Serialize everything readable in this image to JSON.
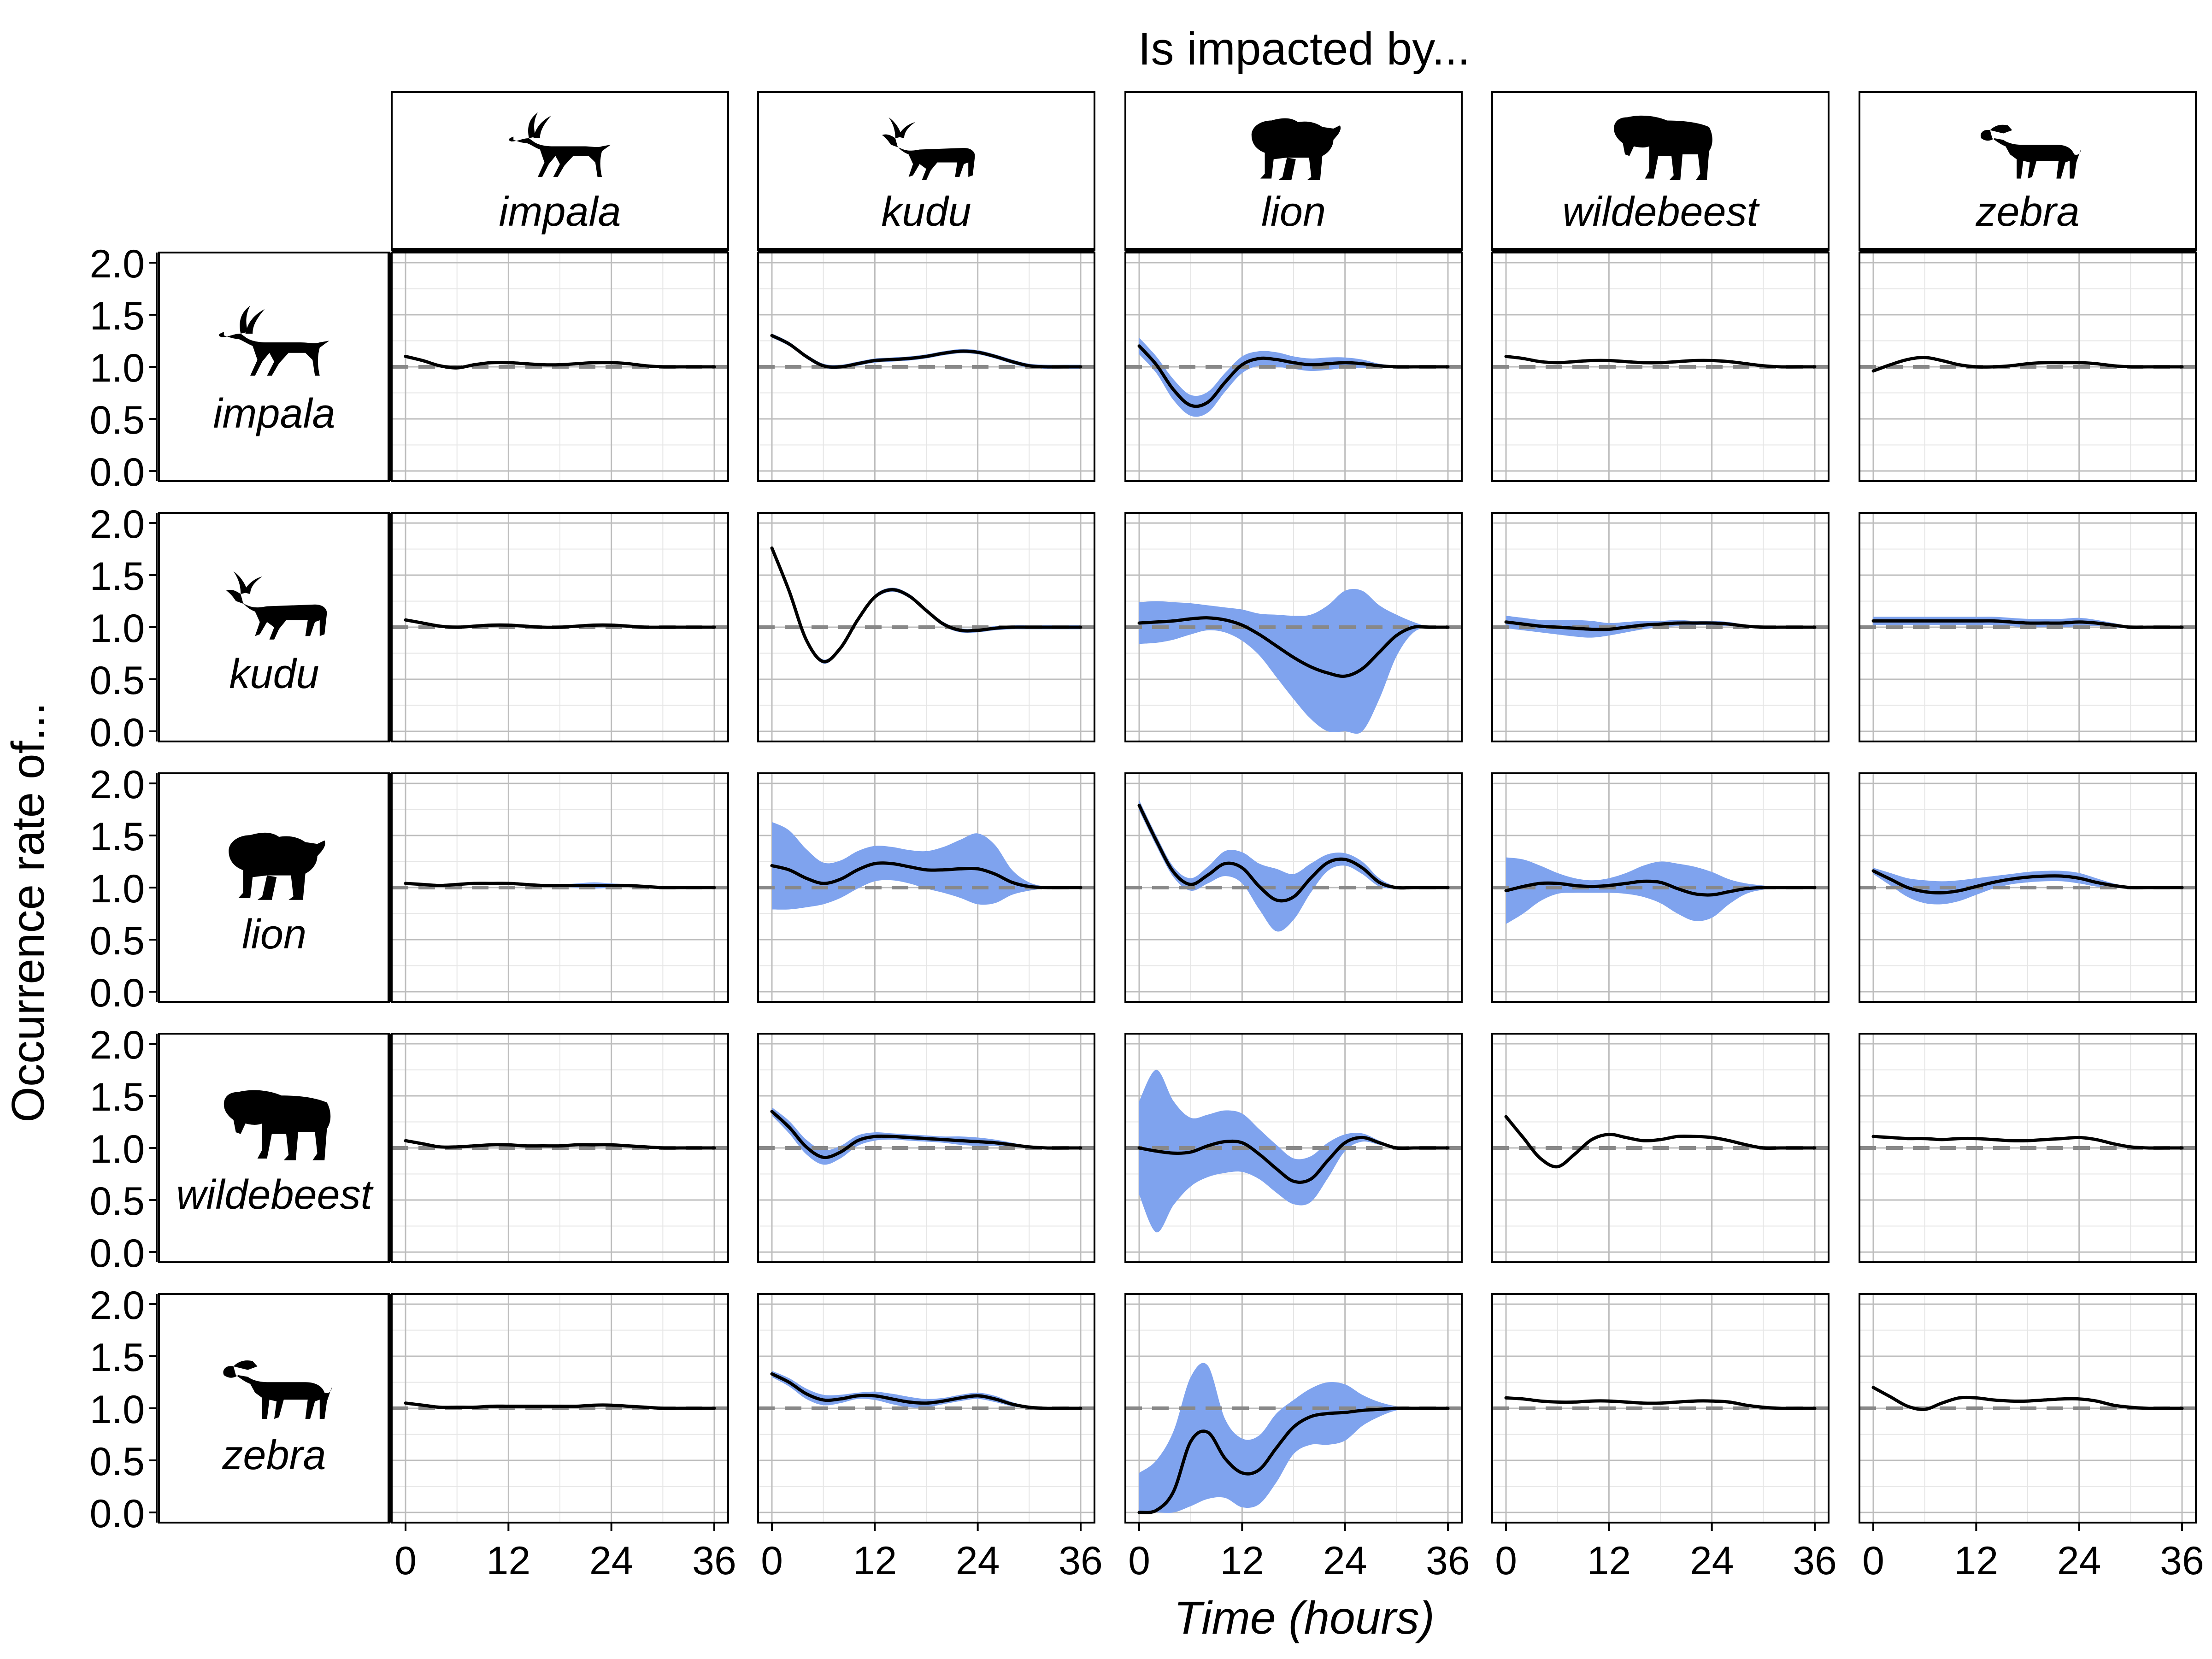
{
  "figure": {
    "top_title": "Is impacted by...",
    "y_title": "Occurrence rate of...",
    "x_title": "Time (hours)",
    "species": [
      "impala",
      "kudu",
      "lion",
      "wildebeest",
      "zebra"
    ]
  },
  "chart_data": {
    "type": "line",
    "layout": "facet grid: rows = species whose occurrence rate is shown, columns = species it is impacted by",
    "xlim": [
      0,
      36
    ],
    "ylim": [
      0,
      2
    ],
    "x_ticks": [
      0,
      12,
      24,
      36
    ],
    "y_ticks": [
      "0.0",
      "0.5",
      "1.0",
      "1.5",
      "2.0"
    ],
    "grid": true,
    "reference_line": 1.0,
    "band_color": "#7fa3ee",
    "line_color": "#000000",
    "x": [
      0,
      2,
      4,
      6,
      8,
      10,
      12,
      14,
      16,
      18,
      20,
      22,
      24,
      26,
      28,
      30,
      32,
      34,
      36
    ],
    "panels": [
      {
        "row": "impala",
        "col": "impala",
        "y": [
          1.1,
          1.06,
          1.01,
          0.99,
          1.02,
          1.04,
          1.04,
          1.03,
          1.02,
          1.02,
          1.03,
          1.04,
          1.04,
          1.03,
          1.01,
          1.0,
          1.0,
          1.0,
          1.0
        ]
      },
      {
        "row": "impala",
        "col": "kudu",
        "y": [
          1.3,
          1.22,
          1.1,
          1.01,
          1.0,
          1.03,
          1.06,
          1.07,
          1.08,
          1.1,
          1.13,
          1.15,
          1.14,
          1.1,
          1.05,
          1.01,
          1.0,
          1.0,
          1.0
        ],
        "band": 0.02
      },
      {
        "row": "impala",
        "col": "lion",
        "y": [
          1.2,
          1.02,
          0.78,
          0.63,
          0.66,
          0.85,
          1.02,
          1.08,
          1.07,
          1.04,
          1.02,
          1.03,
          1.04,
          1.03,
          1.01,
          1.0,
          1.0,
          1.0,
          1.0
        ],
        "band": [
          0.08,
          0.08,
          0.1,
          0.1,
          0.1,
          0.09,
          0.08,
          0.07,
          0.07,
          0.06,
          0.06,
          0.06,
          0.05,
          0.04,
          0.02,
          0.01,
          0.0,
          0.0,
          0.0
        ]
      },
      {
        "row": "impala",
        "col": "wildebeest",
        "y": [
          1.1,
          1.08,
          1.05,
          1.04,
          1.05,
          1.06,
          1.06,
          1.05,
          1.04,
          1.04,
          1.05,
          1.06,
          1.06,
          1.05,
          1.03,
          1.01,
          1.0,
          1.0,
          1.0
        ]
      },
      {
        "row": "impala",
        "col": "zebra",
        "y": [
          0.96,
          1.02,
          1.07,
          1.09,
          1.06,
          1.02,
          1.0,
          1.0,
          1.01,
          1.03,
          1.04,
          1.04,
          1.04,
          1.03,
          1.01,
          1.0,
          1.0,
          1.0,
          1.0
        ]
      },
      {
        "row": "kudu",
        "col": "impala",
        "y": [
          1.07,
          1.04,
          1.01,
          1.0,
          1.01,
          1.02,
          1.02,
          1.01,
          1.0,
          1.0,
          1.01,
          1.02,
          1.02,
          1.01,
          1.0,
          1.0,
          1.0,
          1.0,
          1.0
        ]
      },
      {
        "row": "kudu",
        "col": "kudu",
        "y": [
          1.76,
          1.35,
          0.88,
          0.67,
          0.8,
          1.07,
          1.29,
          1.36,
          1.3,
          1.16,
          1.03,
          0.97,
          0.97,
          0.99,
          1.0,
          1.0,
          1.0,
          1.0,
          1.0
        ],
        "band": 0.02
      },
      {
        "row": "kudu",
        "col": "lion",
        "y": [
          1.04,
          1.05,
          1.06,
          1.08,
          1.09,
          1.07,
          1.02,
          0.93,
          0.82,
          0.71,
          0.62,
          0.56,
          0.53,
          0.6,
          0.76,
          0.92,
          1.0,
          1.0,
          1.0
        ],
        "band": [
          0.2,
          0.2,
          0.18,
          0.15,
          0.12,
          0.12,
          0.15,
          0.2,
          0.3,
          0.4,
          0.5,
          0.65,
          0.82,
          0.75,
          0.45,
          0.2,
          0.05,
          0.0,
          0.0
        ]
      },
      {
        "row": "kudu",
        "col": "wildebeest",
        "y": [
          1.05,
          1.03,
          1.01,
          1.0,
          0.99,
          0.98,
          0.98,
          1.0,
          1.02,
          1.03,
          1.04,
          1.04,
          1.04,
          1.03,
          1.01,
          1.0,
          1.0,
          1.0,
          1.0
        ],
        "band": [
          0.06,
          0.06,
          0.06,
          0.07,
          0.08,
          0.08,
          0.06,
          0.05,
          0.04,
          0.03,
          0.03,
          0.02,
          0.02,
          0.02,
          0.01,
          0.0,
          0.0,
          0.0,
          0.0
        ]
      },
      {
        "row": "kudu",
        "col": "zebra",
        "y": [
          1.06,
          1.06,
          1.06,
          1.06,
          1.06,
          1.06,
          1.06,
          1.06,
          1.05,
          1.04,
          1.04,
          1.04,
          1.05,
          1.04,
          1.02,
          1.0,
          1.0,
          1.0,
          1.0
        ],
        "band": [
          0.04,
          0.04,
          0.04,
          0.04,
          0.04,
          0.04,
          0.04,
          0.04,
          0.04,
          0.04,
          0.04,
          0.04,
          0.04,
          0.03,
          0.02,
          0.01,
          0.0,
          0.0,
          0.0
        ]
      },
      {
        "row": "lion",
        "col": "impala",
        "y": [
          1.04,
          1.03,
          1.02,
          1.03,
          1.04,
          1.04,
          1.04,
          1.03,
          1.02,
          1.02,
          1.02,
          1.02,
          1.02,
          1.02,
          1.01,
          1.0,
          1.0,
          1.0,
          1.0
        ],
        "band": [
          0.0,
          0.0,
          0.0,
          0.0,
          0.0,
          0.0,
          0.0,
          0.0,
          0.0,
          0.01,
          0.02,
          0.03,
          0.02,
          0.01,
          0.0,
          0.0,
          0.0,
          0.0,
          0.0
        ]
      },
      {
        "row": "lion",
        "col": "kudu",
        "y": [
          1.21,
          1.17,
          1.09,
          1.04,
          1.08,
          1.17,
          1.23,
          1.23,
          1.2,
          1.17,
          1.17,
          1.18,
          1.18,
          1.13,
          1.05,
          1.01,
          1.0,
          1.0,
          1.0
        ],
        "band": [
          0.42,
          0.38,
          0.28,
          0.2,
          0.18,
          0.18,
          0.17,
          0.16,
          0.16,
          0.18,
          0.22,
          0.28,
          0.34,
          0.28,
          0.12,
          0.04,
          0.01,
          0.0,
          0.0
        ]
      },
      {
        "row": "lion",
        "col": "lion",
        "y": [
          1.79,
          1.45,
          1.15,
          1.03,
          1.12,
          1.23,
          1.19,
          1.01,
          0.88,
          0.91,
          1.09,
          1.24,
          1.27,
          1.19,
          1.05,
          1.0,
          1.0,
          1.0,
          1.0
        ],
        "band": [
          0.05,
          0.05,
          0.05,
          0.06,
          0.08,
          0.12,
          0.15,
          0.22,
          0.3,
          0.22,
          0.14,
          0.08,
          0.06,
          0.06,
          0.04,
          0.01,
          0.0,
          0.0,
          0.0
        ]
      },
      {
        "row": "lion",
        "col": "wildebeest",
        "y": [
          0.97,
          1.01,
          1.04,
          1.04,
          1.02,
          1.01,
          1.02,
          1.04,
          1.06,
          1.05,
          0.99,
          0.94,
          0.93,
          0.96,
          0.99,
          1.0,
          1.0,
          1.0,
          1.0
        ],
        "band": [
          0.32,
          0.26,
          0.17,
          0.1,
          0.07,
          0.06,
          0.07,
          0.1,
          0.15,
          0.2,
          0.24,
          0.26,
          0.22,
          0.12,
          0.05,
          0.02,
          0.0,
          0.0,
          0.0
        ]
      },
      {
        "row": "lion",
        "col": "zebra",
        "y": [
          1.16,
          1.08,
          1.0,
          0.96,
          0.95,
          0.97,
          1.01,
          1.05,
          1.08,
          1.1,
          1.11,
          1.11,
          1.09,
          1.05,
          1.02,
          1.0,
          1.0,
          1.0,
          1.0
        ],
        "band": [
          0.03,
          0.06,
          0.09,
          0.11,
          0.11,
          0.1,
          0.08,
          0.06,
          0.05,
          0.05,
          0.05,
          0.05,
          0.05,
          0.04,
          0.02,
          0.01,
          0.0,
          0.0,
          0.0
        ]
      },
      {
        "row": "wildebeest",
        "col": "impala",
        "y": [
          1.07,
          1.04,
          1.01,
          1.01,
          1.02,
          1.03,
          1.03,
          1.02,
          1.02,
          1.02,
          1.03,
          1.03,
          1.03,
          1.02,
          1.01,
          1.0,
          1.0,
          1.0,
          1.0
        ]
      },
      {
        "row": "wildebeest",
        "col": "kudu",
        "y": [
          1.35,
          1.2,
          1.01,
          0.91,
          0.96,
          1.07,
          1.11,
          1.11,
          1.1,
          1.09,
          1.08,
          1.07,
          1.06,
          1.05,
          1.03,
          1.01,
          1.0,
          1.0,
          1.0
        ],
        "band": [
          0.04,
          0.06,
          0.07,
          0.07,
          0.06,
          0.05,
          0.04,
          0.03,
          0.03,
          0.03,
          0.03,
          0.04,
          0.04,
          0.03,
          0.02,
          0.01,
          0.0,
          0.0,
          0.0
        ]
      },
      {
        "row": "wildebeest",
        "col": "lion",
        "y": [
          1.0,
          0.97,
          0.95,
          0.96,
          1.02,
          1.06,
          1.05,
          0.94,
          0.8,
          0.68,
          0.7,
          0.88,
          1.05,
          1.1,
          1.05,
          1.0,
          1.0,
          1.0,
          1.0
        ],
        "band": [
          0.45,
          0.78,
          0.5,
          0.33,
          0.3,
          0.3,
          0.28,
          0.24,
          0.23,
          0.22,
          0.22,
          0.17,
          0.08,
          0.04,
          0.02,
          0.01,
          0.0,
          0.0,
          0.0
        ]
      },
      {
        "row": "wildebeest",
        "col": "wildebeest",
        "y": [
          1.3,
          1.1,
          0.9,
          0.82,
          0.94,
          1.08,
          1.13,
          1.1,
          1.07,
          1.08,
          1.11,
          1.11,
          1.1,
          1.07,
          1.03,
          1.0,
          1.0,
          1.0,
          1.0
        ]
      },
      {
        "row": "wildebeest",
        "col": "zebra",
        "y": [
          1.11,
          1.1,
          1.09,
          1.09,
          1.08,
          1.09,
          1.09,
          1.08,
          1.07,
          1.07,
          1.08,
          1.09,
          1.1,
          1.08,
          1.04,
          1.01,
          1.0,
          1.0,
          1.0
        ]
      },
      {
        "row": "zebra",
        "col": "impala",
        "y": [
          1.05,
          1.03,
          1.01,
          1.01,
          1.01,
          1.02,
          1.02,
          1.02,
          1.02,
          1.02,
          1.02,
          1.03,
          1.03,
          1.02,
          1.01,
          1.0,
          1.0,
          1.0,
          1.0
        ]
      },
      {
        "row": "zebra",
        "col": "kudu",
        "y": [
          1.33,
          1.25,
          1.14,
          1.08,
          1.09,
          1.12,
          1.12,
          1.09,
          1.06,
          1.05,
          1.07,
          1.1,
          1.12,
          1.09,
          1.04,
          1.01,
          1.0,
          1.0,
          1.0
        ],
        "band": [
          0.03,
          0.04,
          0.05,
          0.05,
          0.04,
          0.03,
          0.04,
          0.05,
          0.05,
          0.04,
          0.03,
          0.03,
          0.03,
          0.03,
          0.02,
          0.01,
          0.0,
          0.0,
          0.0
        ]
      },
      {
        "row": "zebra",
        "col": "lion",
        "y": [
          0.0,
          0.02,
          0.2,
          0.68,
          0.77,
          0.52,
          0.38,
          0.41,
          0.62,
          0.82,
          0.92,
          0.95,
          0.96,
          0.98,
          0.99,
          1.0,
          1.0,
          1.0,
          1.0
        ],
        "band": [
          0.38,
          0.48,
          0.58,
          0.62,
          0.64,
          0.38,
          0.33,
          0.33,
          0.33,
          0.26,
          0.27,
          0.3,
          0.27,
          0.15,
          0.07,
          0.02,
          0.0,
          0.0,
          0.0
        ]
      },
      {
        "row": "zebra",
        "col": "wildebeest",
        "y": [
          1.1,
          1.09,
          1.07,
          1.06,
          1.06,
          1.07,
          1.07,
          1.06,
          1.05,
          1.05,
          1.06,
          1.07,
          1.07,
          1.06,
          1.03,
          1.01,
          1.0,
          1.0,
          1.0
        ]
      },
      {
        "row": "zebra",
        "col": "zebra",
        "y": [
          1.2,
          1.11,
          1.02,
          0.99,
          1.05,
          1.1,
          1.1,
          1.08,
          1.07,
          1.07,
          1.08,
          1.09,
          1.09,
          1.07,
          1.03,
          1.01,
          1.0,
          1.0,
          1.0
        ]
      }
    ]
  }
}
